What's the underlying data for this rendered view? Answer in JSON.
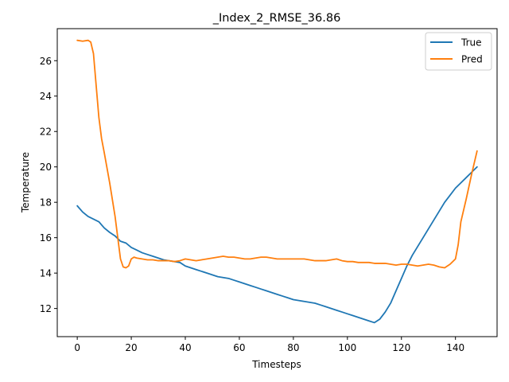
{
  "chart_data": {
    "type": "line",
    "title": "_Index_2_RMSE_36.86",
    "xlabel": "Timesteps",
    "ylabel": "Temperature",
    "xlim": [
      -7.4,
      155.4
    ],
    "ylim": [
      10.41,
      27.81
    ],
    "xticks": [
      0,
      20,
      40,
      60,
      80,
      100,
      120,
      140
    ],
    "yticks": [
      12,
      14,
      16,
      18,
      20,
      22,
      24,
      26
    ],
    "grid": false,
    "legend_position": "top-right",
    "series": [
      {
        "name": "True",
        "color": "#1f77b4",
        "x": [
          0,
          2,
          4,
          6,
          8,
          10,
          12,
          14,
          16,
          18,
          20,
          22,
          24,
          26,
          28,
          30,
          32,
          34,
          36,
          38,
          40,
          42,
          44,
          46,
          48,
          50,
          52,
          54,
          56,
          58,
          60,
          62,
          64,
          66,
          68,
          70,
          72,
          74,
          76,
          78,
          80,
          82,
          84,
          86,
          88,
          90,
          92,
          94,
          96,
          98,
          100,
          102,
          104,
          106,
          108,
          110,
          112,
          114,
          116,
          118,
          120,
          122,
          124,
          126,
          128,
          130,
          132,
          134,
          136,
          138,
          140,
          142,
          144,
          146,
          148
        ],
        "y": [
          17.8,
          17.45,
          17.2,
          17.05,
          16.9,
          16.55,
          16.3,
          16.1,
          15.8,
          15.7,
          15.45,
          15.3,
          15.15,
          15.05,
          14.95,
          14.85,
          14.75,
          14.7,
          14.65,
          14.6,
          14.4,
          14.3,
          14.2,
          14.1,
          14.0,
          13.9,
          13.8,
          13.75,
          13.7,
          13.6,
          13.5,
          13.4,
          13.3,
          13.2,
          13.1,
          13.0,
          12.9,
          12.8,
          12.7,
          12.6,
          12.5,
          12.45,
          12.4,
          12.35,
          12.3,
          12.2,
          12.1,
          12.0,
          11.9,
          11.8,
          11.7,
          11.6,
          11.5,
          11.4,
          11.3,
          11.2,
          11.4,
          11.8,
          12.3,
          13.0,
          13.7,
          14.4,
          15.0,
          15.5,
          16.0,
          16.5,
          17.0,
          17.5,
          18.0,
          18.4,
          18.8,
          19.1,
          19.4,
          19.7,
          20.0
        ]
      },
      {
        "name": "Pred",
        "color": "#ff7f0e",
        "x": [
          0,
          2,
          4,
          5,
          6,
          7,
          8,
          9,
          10,
          12,
          14,
          16,
          17,
          18,
          19,
          20,
          21,
          22,
          24,
          26,
          28,
          30,
          32,
          34,
          36,
          38,
          40,
          42,
          44,
          46,
          48,
          50,
          52,
          54,
          56,
          58,
          60,
          62,
          64,
          66,
          68,
          70,
          72,
          74,
          76,
          78,
          80,
          82,
          84,
          86,
          88,
          90,
          92,
          94,
          96,
          98,
          100,
          102,
          104,
          106,
          108,
          110,
          112,
          114,
          116,
          118,
          120,
          122,
          124,
          126,
          128,
          130,
          132,
          134,
          136,
          138,
          140,
          141,
          142,
          144,
          146,
          148
        ],
        "y": [
          27.15,
          27.1,
          27.15,
          27.05,
          26.4,
          24.6,
          22.8,
          21.6,
          20.8,
          19.1,
          17.2,
          14.8,
          14.35,
          14.3,
          14.4,
          14.8,
          14.9,
          14.85,
          14.8,
          14.75,
          14.75,
          14.7,
          14.7,
          14.7,
          14.65,
          14.7,
          14.8,
          14.75,
          14.7,
          14.75,
          14.8,
          14.85,
          14.9,
          14.95,
          14.9,
          14.9,
          14.85,
          14.8,
          14.8,
          14.85,
          14.9,
          14.9,
          14.85,
          14.8,
          14.8,
          14.8,
          14.8,
          14.8,
          14.8,
          14.75,
          14.7,
          14.7,
          14.7,
          14.75,
          14.8,
          14.7,
          14.65,
          14.65,
          14.6,
          14.6,
          14.6,
          14.55,
          14.55,
          14.55,
          14.5,
          14.45,
          14.5,
          14.5,
          14.45,
          14.4,
          14.45,
          14.5,
          14.45,
          14.35,
          14.3,
          14.5,
          14.8,
          15.6,
          16.9,
          18.2,
          19.6,
          20.9
        ]
      }
    ]
  }
}
